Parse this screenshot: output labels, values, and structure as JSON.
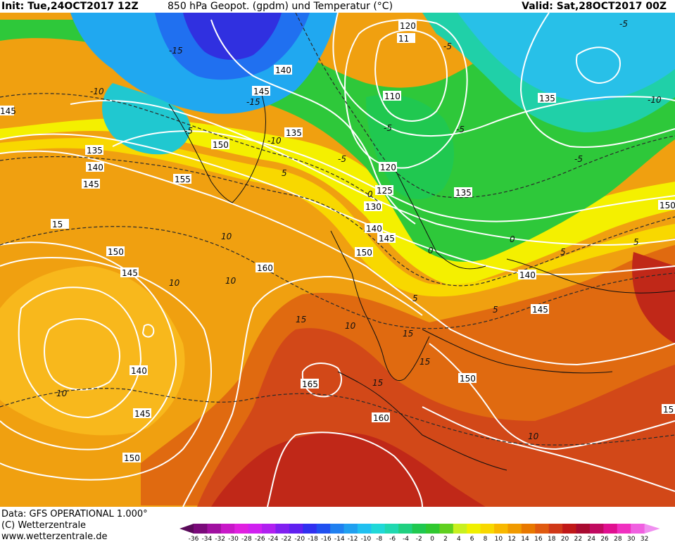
{
  "header": {
    "init": "Init: Tue,24OCT2017 12Z",
    "title": "850 hPa Geopot. (gpdm) und Temperatur (°C)",
    "valid": "Valid: Sat,28OCT2017 00Z"
  },
  "footer": {
    "data_line": "Data: GFS OPERATIONAL 1.000°",
    "copyright": "(C) Wetterzentrale",
    "url": "www.wetterzentrale.de"
  },
  "legend": {
    "ticks": [
      "-36",
      "-34",
      "-32",
      "-30",
      "-28",
      "-26",
      "-24",
      "-22",
      "-20",
      "-18",
      "-16",
      "-14",
      "-12",
      "-10",
      "-8",
      "-6",
      "-4",
      "-2",
      "0",
      "2",
      "4",
      "6",
      "8",
      "10",
      "12",
      "14",
      "16",
      "18",
      "20",
      "22",
      "24",
      "26",
      "28",
      "30",
      "32"
    ],
    "colors": [
      "#5a0a5a",
      "#7a0a7a",
      "#a010a0",
      "#c818c8",
      "#e020e0",
      "#d020f0",
      "#b020f0",
      "#8020f0",
      "#6020f0",
      "#3030f0",
      "#2050f0",
      "#2080f0",
      "#20a0f0",
      "#20c0f0",
      "#20d8d8",
      "#20d8b0",
      "#20d080",
      "#20c850",
      "#30c830",
      "#60d020",
      "#c8f020",
      "#f0f000",
      "#f8d800",
      "#f8b800",
      "#f09a00",
      "#e87800",
      "#e05a10",
      "#d03818",
      "#c01818",
      "#a80a30",
      "#c00a60",
      "#e01090",
      "#f030c0",
      "#f060e0",
      "#f090f0"
    ]
  },
  "map": {
    "geopotential_labels": [
      "120",
      "110",
      "140",
      "145",
      "135",
      "150",
      "135",
      "140",
      "145",
      "155",
      "150",
      "120",
      "125",
      "130",
      "140",
      "145",
      "150",
      "135",
      "135",
      "160",
      "150",
      "145",
      "140",
      "140",
      "145",
      "150",
      "165",
      "160",
      "145",
      "150",
      "15",
      "145",
      "15",
      "11"
    ],
    "temperature_labels": [
      "-10",
      "-5",
      "-5",
      "-10",
      "-15",
      "-15",
      "-5",
      "-10",
      "-5",
      "5",
      "0",
      "-5",
      "-5",
      "-5",
      "5",
      "10",
      "10",
      "10",
      "10",
      "10",
      "15",
      "15",
      "15",
      "10",
      "15",
      "5",
      "0",
      "0",
      "5",
      "5"
    ]
  }
}
